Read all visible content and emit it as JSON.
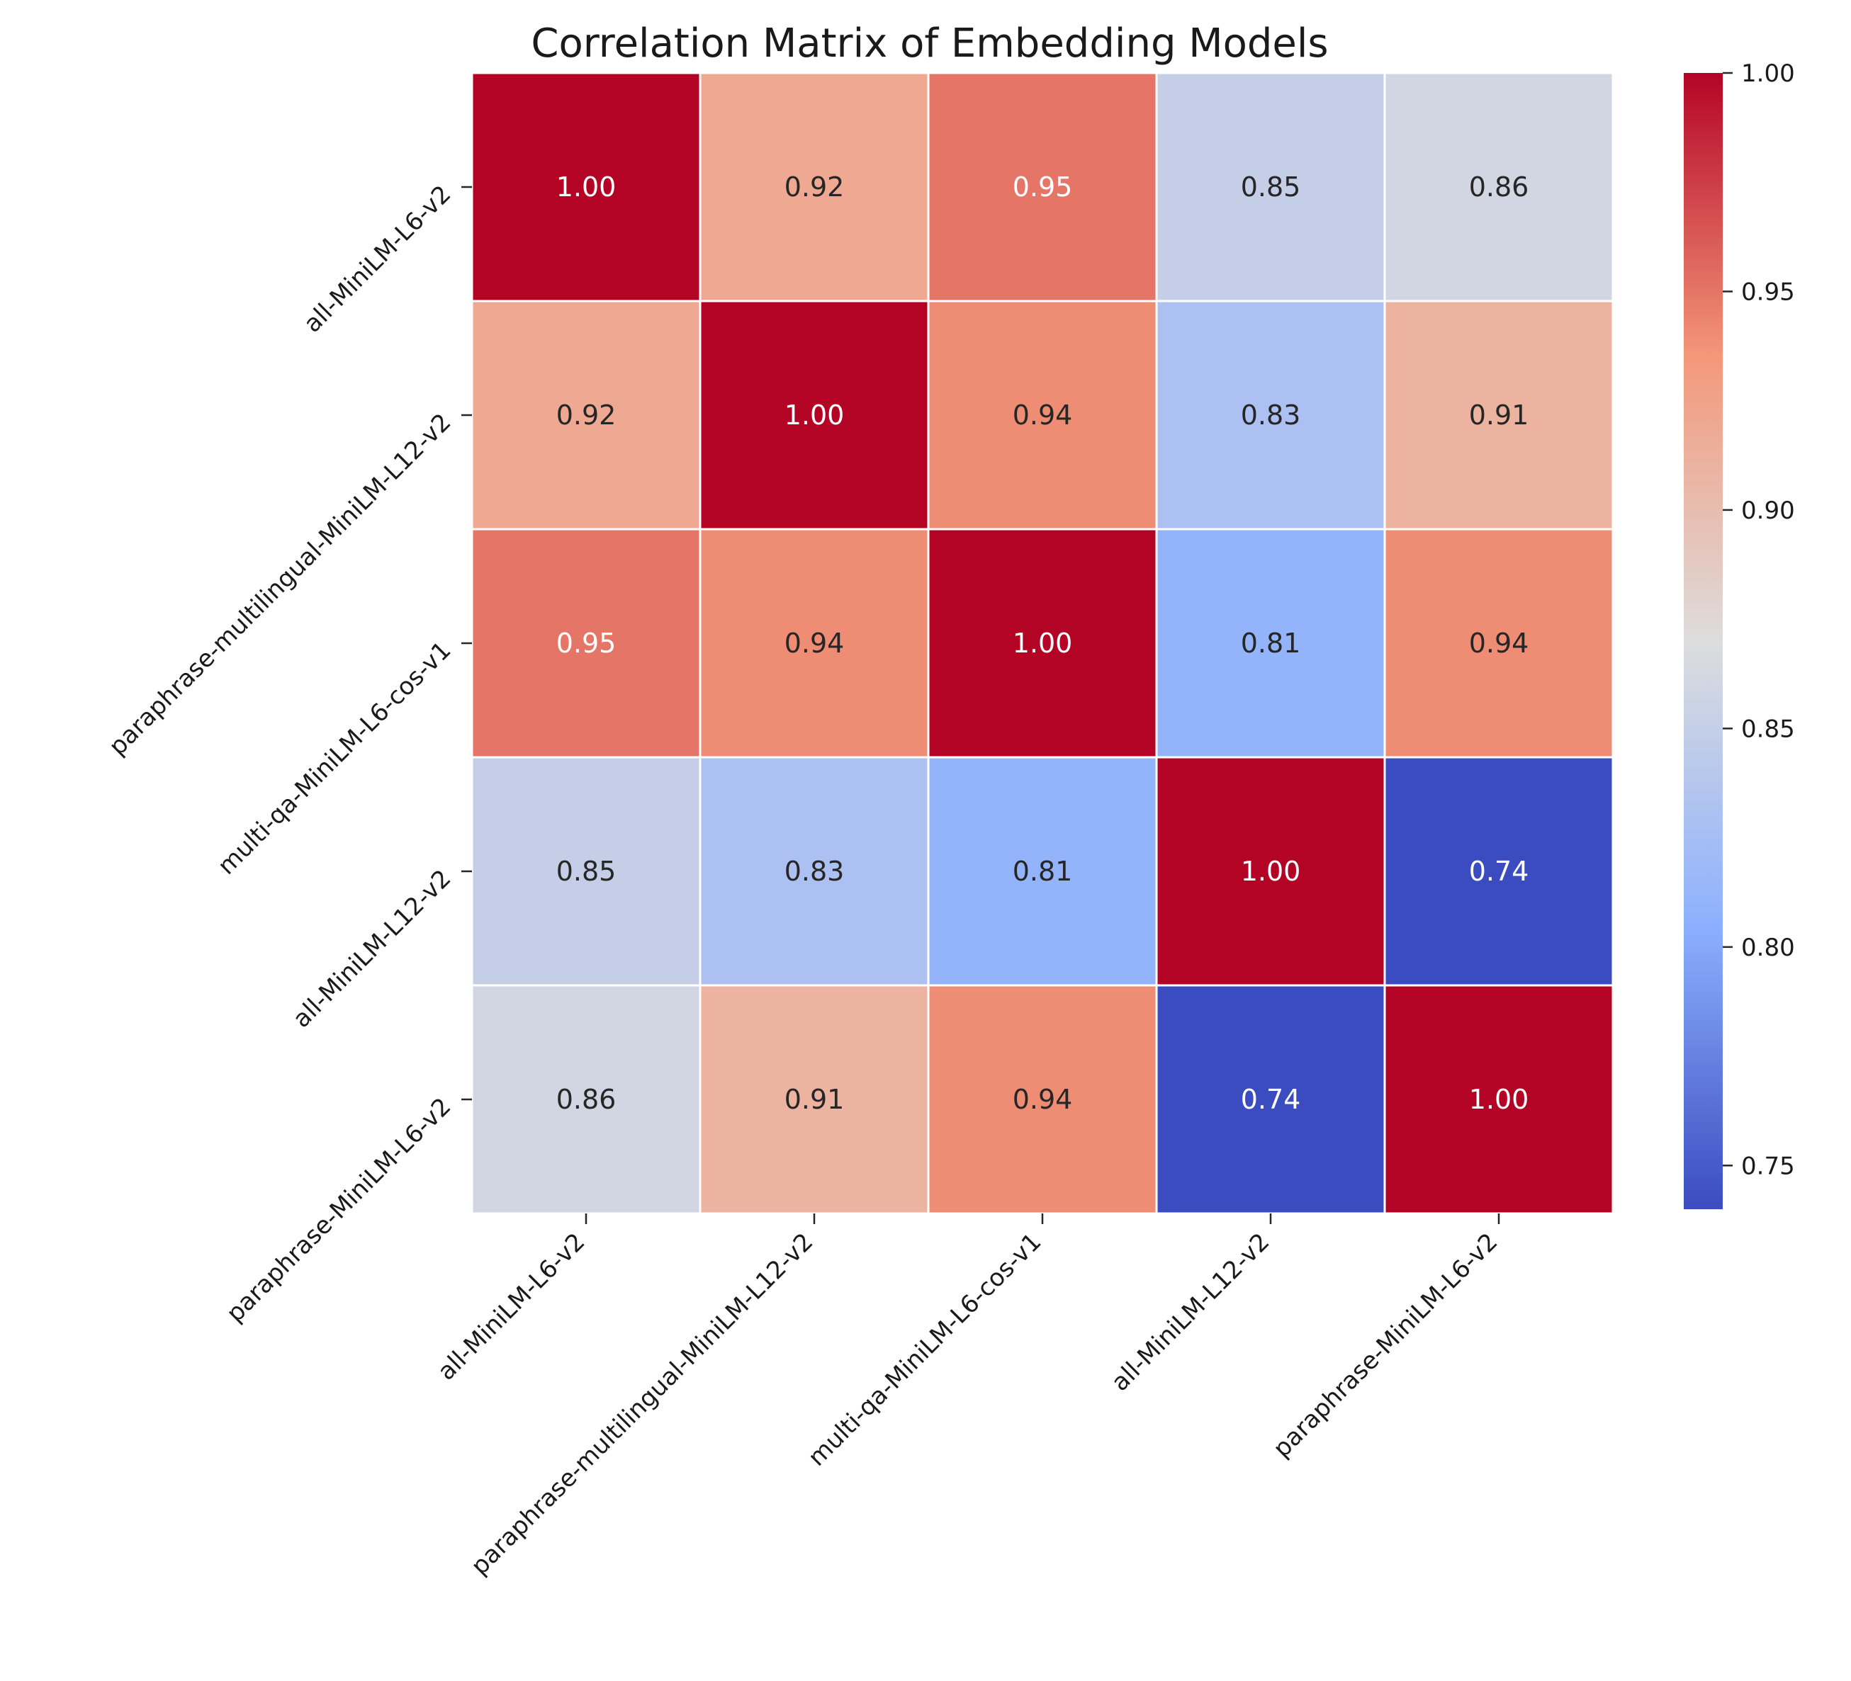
{
  "chart_data": {
    "type": "heatmap",
    "title": "Correlation Matrix of Embedding Models",
    "x_labels": [
      "all-MiniLM-L6-v2",
      "paraphrase-multilingual-MiniLM-L12-v2",
      "multi-qa-MiniLM-L6-cos-v1",
      "all-MiniLM-L12-v2",
      "paraphrase-MiniLM-L6-v2"
    ],
    "y_labels": [
      "all-MiniLM-L6-v2",
      "paraphrase-multilingual-MiniLM-L12-v2",
      "multi-qa-MiniLM-L6-cos-v1",
      "all-MiniLM-L12-v2",
      "paraphrase-MiniLM-L6-v2"
    ],
    "values": [
      [
        1.0,
        0.92,
        0.95,
        0.85,
        0.86
      ],
      [
        0.92,
        1.0,
        0.94,
        0.83,
        0.91
      ],
      [
        0.95,
        0.94,
        1.0,
        0.81,
        0.94
      ],
      [
        0.85,
        0.83,
        0.81,
        1.0,
        0.74
      ],
      [
        0.86,
        0.91,
        0.94,
        0.74,
        1.0
      ]
    ],
    "value_format": "2 decimals",
    "colormap": "coolwarm",
    "color_range": [
      0.74,
      1.0
    ],
    "colorbar_ticks": [
      "0.75",
      "0.80",
      "0.85",
      "0.90",
      "0.95",
      "1.00"
    ],
    "colorbar_tick_values": [
      0.75,
      0.8,
      0.85,
      0.9,
      0.95,
      1.0
    ],
    "xlabel": "",
    "ylabel": "",
    "annotations": true,
    "colors": {
      "low": "#3b4cc0",
      "mid": "#dddddd",
      "high": "#b40426",
      "cell_border": "#ffffff"
    }
  }
}
